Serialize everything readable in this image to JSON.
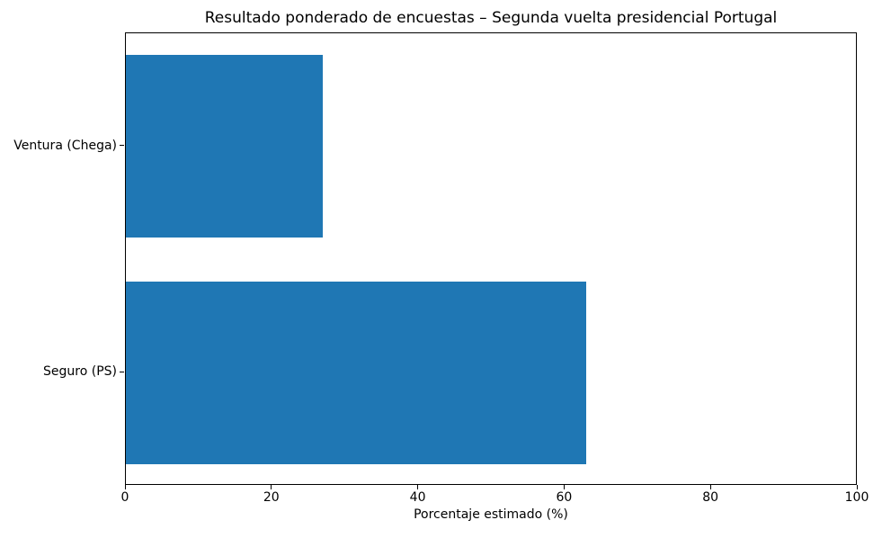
{
  "chart_data": {
    "type": "bar",
    "orientation": "horizontal",
    "title": "Resultado ponderado de encuestas – Segunda vuelta presidencial Portugal",
    "xlabel": "Porcentaje estimado (%)",
    "ylabel": "",
    "categories": [
      "Ventura (Chega)",
      "Seguro (PS)"
    ],
    "values": [
      27,
      63
    ],
    "xlim": [
      0,
      100
    ],
    "xticks": [
      0,
      20,
      40,
      60,
      80,
      100
    ],
    "bar_color": "#1f77b4",
    "grid": false,
    "legend": null,
    "background_color": "#ffffff",
    "axes_box": true
  }
}
